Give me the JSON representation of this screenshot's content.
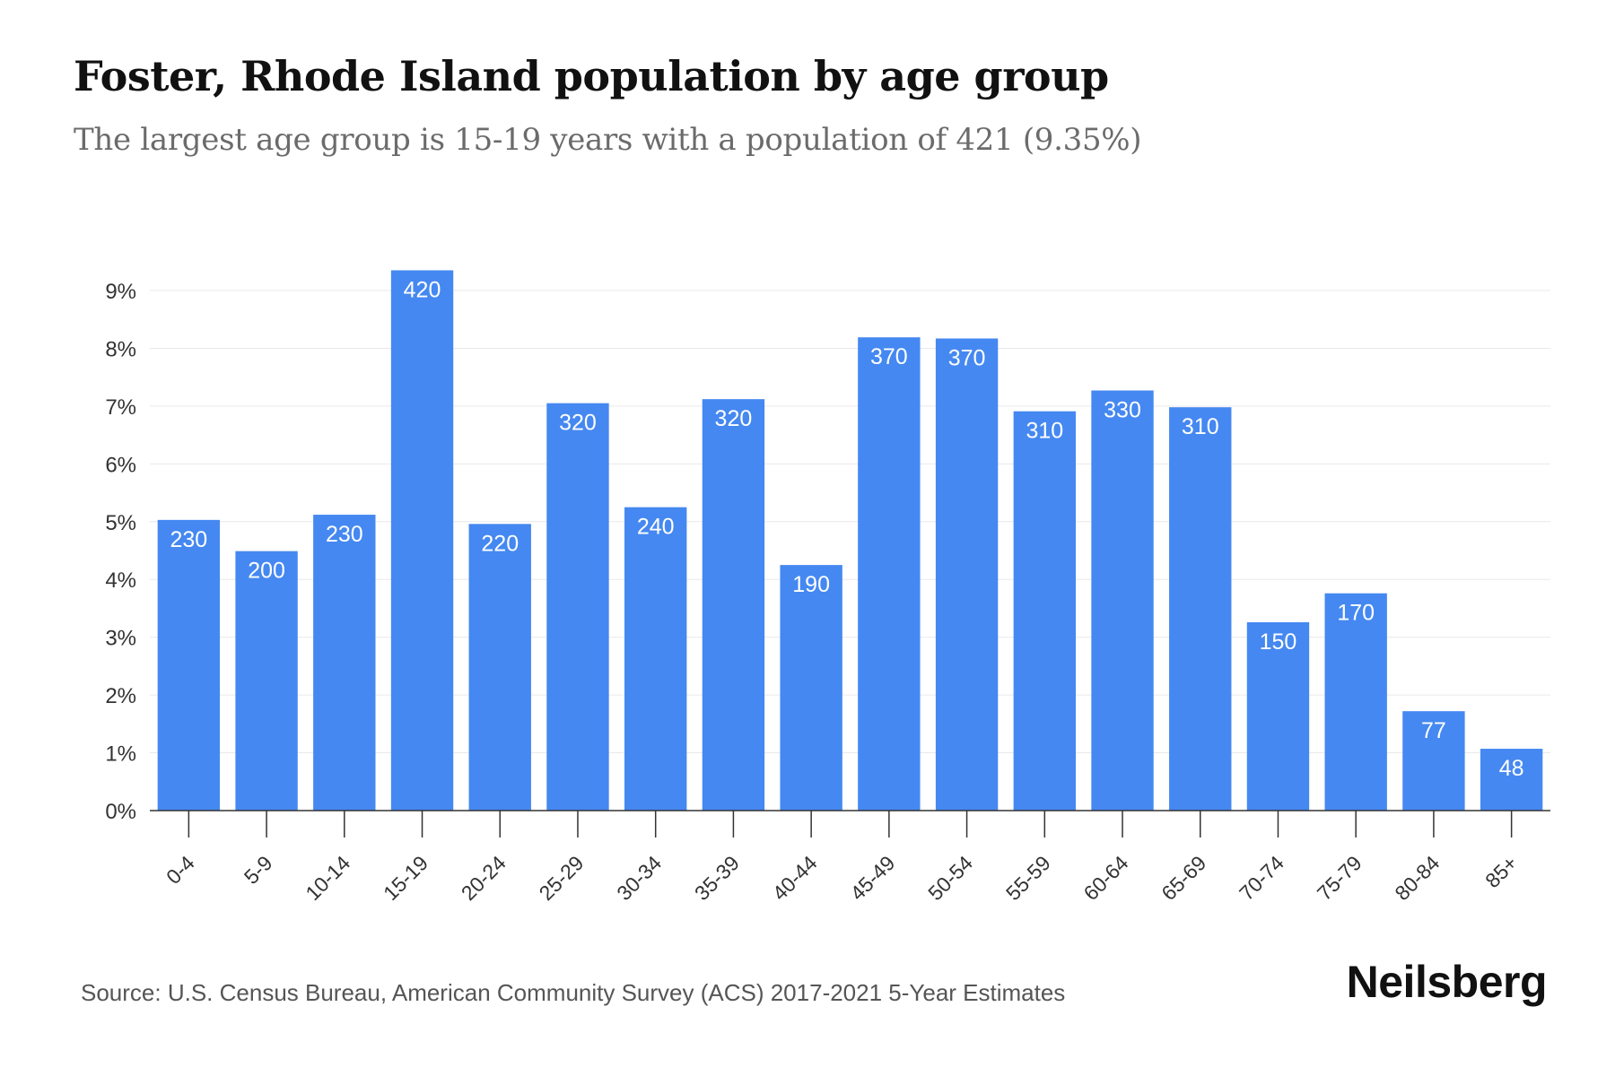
{
  "header": {
    "title": "Foster, Rhode Island population by age group",
    "subtitle": "The largest age group is 15-19 years with a population of 421 (9.35%)"
  },
  "footer": {
    "source": "Source: U.S. Census Bureau, American Community Survey (ACS) 2017-2021 5-Year Estimates",
    "brand": "Neilsberg"
  },
  "colors": {
    "bar": "#4588F1",
    "grid": "#e9e9e9",
    "axis": "#333333",
    "bar_label": "#ffffff",
    "tick_label": "#333333"
  },
  "chart_data": {
    "type": "bar",
    "title": "Foster, Rhode Island population by age group",
    "subtitle": "The largest age group is 15-19 years with a population of 421 (9.35%)",
    "xlabel": "",
    "ylabel": "",
    "ylim": [
      0,
      9
    ],
    "grid": "horizontal",
    "y_ticks": [
      "0%",
      "1%",
      "2%",
      "3%",
      "4%",
      "5%",
      "6%",
      "7%",
      "8%",
      "9%"
    ],
    "categories": [
      "0-4",
      "5-9",
      "10-14",
      "15-19",
      "20-24",
      "25-29",
      "30-34",
      "35-39",
      "40-44",
      "45-49",
      "50-54",
      "55-59",
      "60-64",
      "65-69",
      "70-74",
      "75-79",
      "80-84",
      "85+"
    ],
    "values": [
      5.03,
      4.49,
      5.12,
      9.35,
      4.96,
      7.05,
      5.25,
      7.12,
      4.25,
      8.19,
      8.17,
      6.91,
      7.27,
      6.98,
      3.26,
      3.76,
      1.72,
      1.07
    ],
    "data_labels": [
      "230",
      "200",
      "230",
      "420",
      "220",
      "320",
      "240",
      "320",
      "190",
      "370",
      "370",
      "310",
      "330",
      "310",
      "150",
      "170",
      "77",
      "48"
    ]
  }
}
